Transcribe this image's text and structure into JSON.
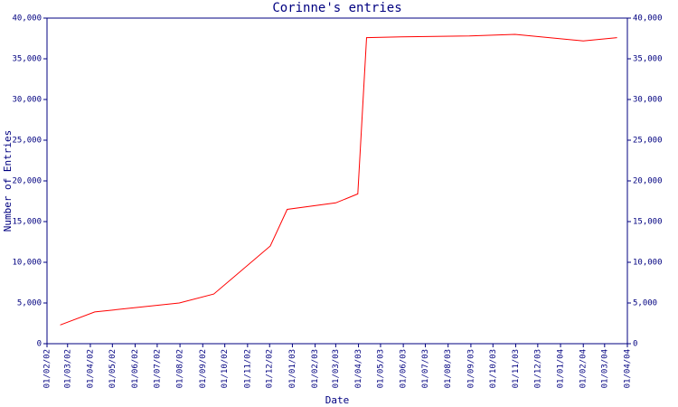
{
  "chart_data": {
    "type": "line",
    "title": "Corinne's entries",
    "x_label": "Date",
    "y_label": "Number of Entries",
    "xlim": [
      "01/02/02",
      "01/04/04"
    ],
    "xticks": [
      "01/02/02",
      "01/03/02",
      "01/04/02",
      "01/05/02",
      "01/06/02",
      "01/07/02",
      "01/08/02",
      "01/09/02",
      "01/10/02",
      "01/11/02",
      "01/12/02",
      "01/01/03",
      "01/02/03",
      "01/03/03",
      "01/04/03",
      "01/05/03",
      "01/06/03",
      "01/07/03",
      "01/08/03",
      "01/09/03",
      "01/10/03",
      "01/11/03",
      "01/12/03",
      "01/01/04",
      "01/02/04",
      "01/03/04",
      "01/04/04"
    ],
    "ylim": [
      0,
      40000
    ],
    "yticks": [
      0,
      {
        "value": 5000,
        "label": "5,000"
      },
      {
        "value": 10000,
        "label": "10,000"
      },
      {
        "value": 15000,
        "label": "15,000"
      },
      {
        "value": 20000,
        "label": "20,000"
      },
      {
        "value": 25000,
        "label": "25,000"
      },
      {
        "value": 30000,
        "label": "30,000"
      },
      {
        "value": 35000,
        "label": "35,000"
      },
      {
        "value": 40000,
        "label": "40,000"
      }
    ],
    "axis_color": "#000080",
    "series": [
      {
        "color": "#ff0000",
        "x": [
          "19/02/02",
          "07/04/02",
          "31/07/02",
          "16/09/02",
          "02/12/02",
          "25/12/02",
          "01/03/03",
          "31/03/03",
          "12/04/03",
          "29/05/03",
          "30/08/03",
          "31/10/03",
          "01/02/04",
          "18/03/04"
        ],
        "values": [
          2300,
          3900,
          5000,
          6100,
          12000,
          16500,
          17300,
          18400,
          37600,
          37700,
          37800,
          38000,
          37200,
          37600
        ]
      }
    ]
  }
}
